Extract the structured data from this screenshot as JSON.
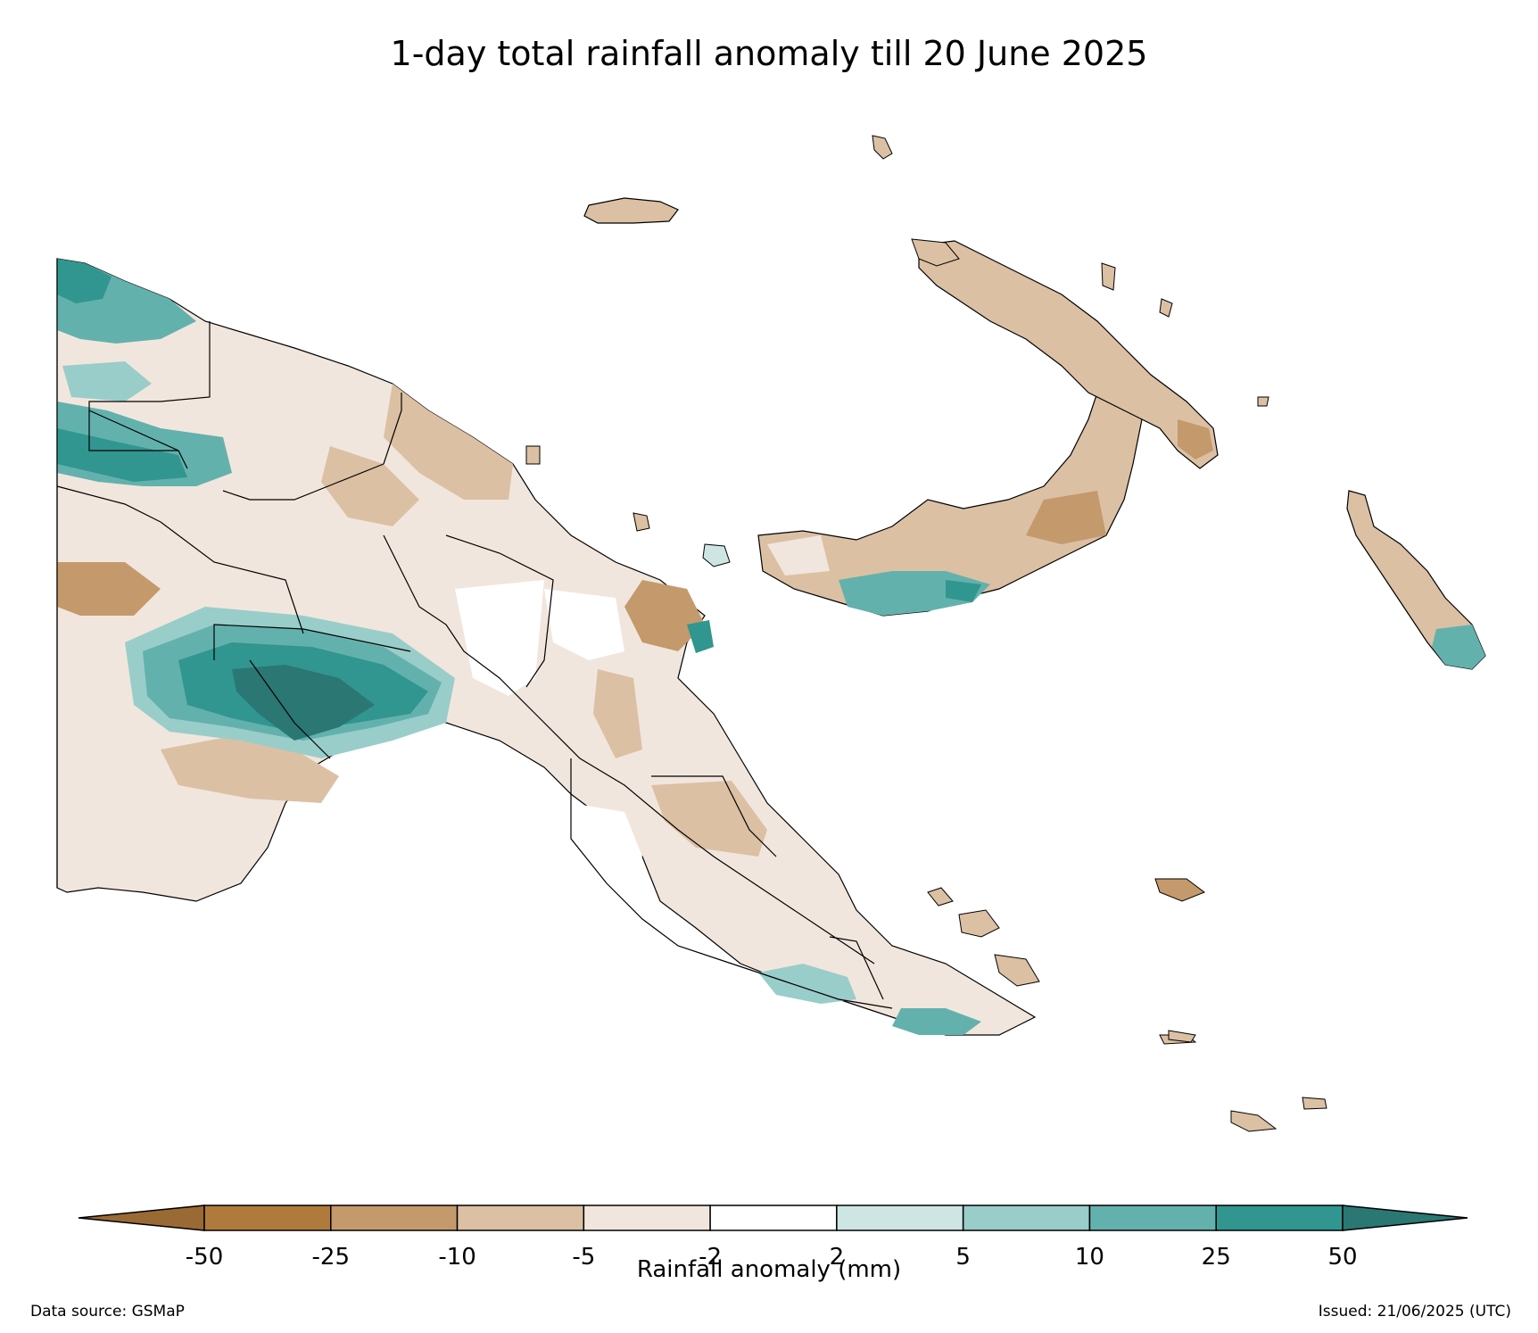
{
  "title": "1-day total rainfall anomaly till 20 June 2025",
  "colorbar": {
    "label": "Rainfall anomaly (mm)",
    "ticks": [
      "-50",
      "-25",
      "-10",
      "-5",
      "-2",
      "2",
      "5",
      "10",
      "25",
      "50"
    ],
    "colors": [
      "#b07a3c",
      "#c49a6c",
      "#dbc0a4",
      "#f1e6dd",
      "#ffffff",
      "#cde6e4",
      "#99cdc9",
      "#63b1ad",
      "#31968f"
    ],
    "extend_low_color": "#9a6a35",
    "extend_high_color": "#2a7773"
  },
  "footer": {
    "source": "Data source: GSMaP",
    "issued": "Issued: 21/06/2025 (UTC)"
  }
}
